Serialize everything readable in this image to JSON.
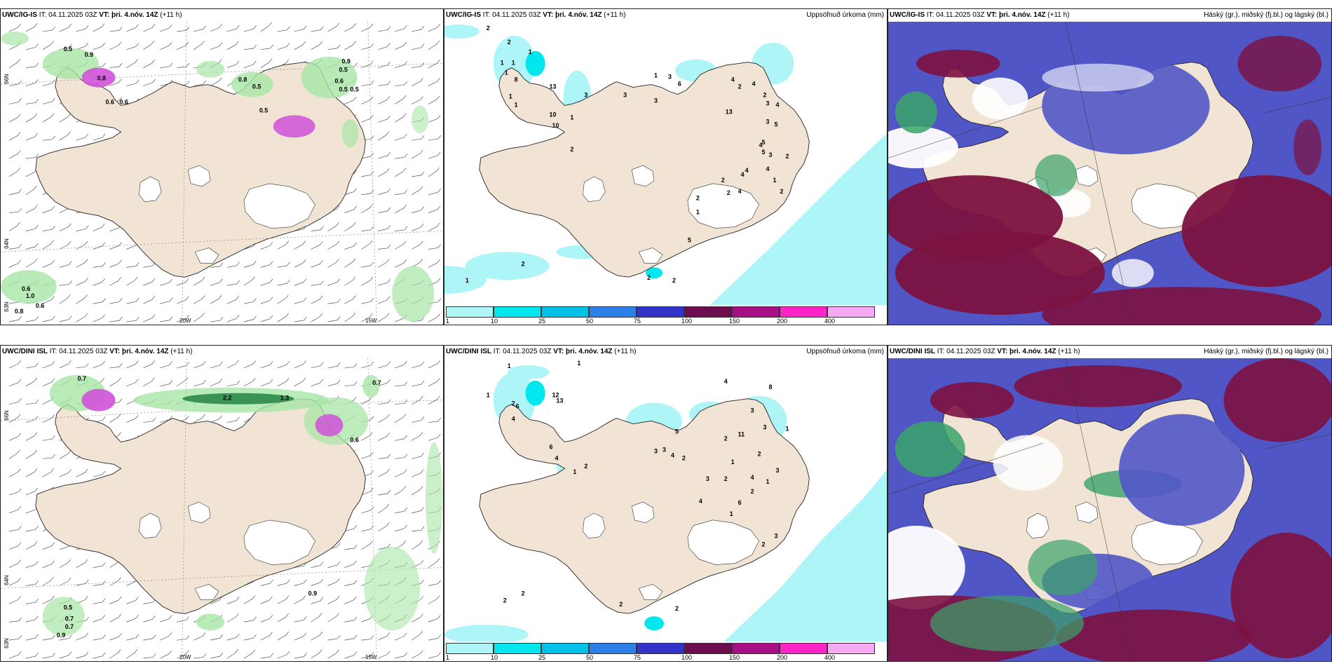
{
  "panels": [
    {
      "model": "UWC/IG-IS",
      "it_label": "IT:",
      "it": "04.11.2025 03Z",
      "vt_label": "VT:",
      "vt": "þri. 4.nóv. 14Z",
      "lead": "(+11 h)",
      "wind_labels": [
        "0.5",
        "0.9",
        "0.8",
        "0.6",
        "0.6",
        "0.8",
        "0.5",
        "0.5",
        "0.9",
        "0.5",
        "0.6",
        "0.5",
        "0.5",
        "1.0",
        "0.6",
        "0.8",
        "0.6"
      ],
      "axis_labels": {
        "lat1": "66N",
        "lat2": "64N",
        "lat3": "63N",
        "lon1": "20W",
        "lon2": "15W"
      }
    },
    {
      "model": "UWC/IG-IS",
      "it_label": "IT:",
      "it": "04.11.2025 03Z",
      "vt_label": "VT:",
      "vt": "þri. 4.nóv. 14Z",
      "lead": "(+11 h)",
      "right_title": "Uppsöfnuð úrkoma (mm)",
      "precip_labels": [
        "2",
        "2",
        "1",
        "1",
        "1",
        "8",
        "13",
        "1",
        "10",
        "10",
        "1",
        "2",
        "1",
        "3",
        "1",
        "3",
        "3",
        "3",
        "6",
        "13",
        "4",
        "1",
        "2",
        "4",
        "2",
        "4",
        "5",
        "4",
        "4",
        "2",
        "2",
        "1",
        "5",
        "4",
        "1",
        "2",
        "2",
        "3",
        "5",
        "3",
        "4",
        "5",
        "3",
        "4",
        "2",
        "2",
        "2",
        "2",
        "1"
      ]
    },
    {
      "model": "UWC/IG-IS",
      "it_label": "IT:",
      "it": "04.11.2025 03Z",
      "vt_label": "VT:",
      "vt": "þri. 4.nóv. 14Z",
      "lead": "(+11 h)",
      "right_title": "Háský (gr.), miðský (fj.bl.) og lágský (bl.)"
    },
    {
      "model": "UWC/DINI ISL",
      "it_label": "IT:",
      "it": "04.11.2025 03Z",
      "vt_label": "VT:",
      "vt": "þri. 4.nóv. 14Z",
      "lead": "(+11 h)",
      "wind_labels": [
        "0.7",
        "2.2",
        "1.3",
        "0.7",
        "0.6",
        "0.5",
        "0.7",
        "0.7",
        "0.9",
        "0.9"
      ],
      "axis_labels": {
        "lat1": "66N",
        "lat2": "64N",
        "lat3": "63N",
        "lon1": "20W",
        "lon2": "15W"
      }
    },
    {
      "model": "UWC/DINI ISL",
      "it_label": "IT:",
      "it": "04.11.2025 03Z",
      "vt_label": "VT:",
      "vt": "þri. 4.nóv. 14Z",
      "lead": "(+11 h)",
      "right_title": "Uppsöfnuð úrkoma (mm)",
      "precip_labels": [
        "1",
        "1",
        "2",
        "6",
        "4",
        "12",
        "13",
        "1",
        "6",
        "4",
        "1",
        "2",
        "3",
        "3",
        "4",
        "5",
        "2",
        "2",
        "3",
        "4",
        "8",
        "1",
        "3",
        "11",
        "2",
        "1",
        "3",
        "2",
        "4",
        "3",
        "1",
        "2",
        "6",
        "4",
        "1",
        "2",
        "3",
        "2",
        "2",
        "2",
        "2"
      ]
    },
    {
      "model": "UWC/DINI ISL",
      "it_label": "IT:",
      "it": "04.11.2025 03Z",
      "vt_label": "VT:",
      "vt": "þri. 4.nóv. 14Z",
      "lead": "(+11 h)",
      "right_title": "Háský (gr.), miðský (fj.bl.) og lágský (bl.)"
    }
  ],
  "precip_colorbar": {
    "ticks": [
      "1",
      "10",
      "25",
      "50",
      "75",
      "100",
      "150",
      "200",
      "400"
    ],
    "colors": [
      "#aef5f7",
      "#00e8ee",
      "#00c2e8",
      "#2f7fe8",
      "#3333c9",
      "#6b0d4f",
      "#a60f85",
      "#ff24c8",
      "#f6a8f2"
    ]
  },
  "colors": {
    "land": "#f1e4d4",
    "sea": "#ffffff",
    "precip_green": "#a8e6a6",
    "precip_darkgreen": "#2a8a4a",
    "precip_purple": "#cf52d8",
    "high_cloud": "#7c1240",
    "mid_cloud": "#5156c6",
    "low_cloud": "#3aa36a"
  }
}
